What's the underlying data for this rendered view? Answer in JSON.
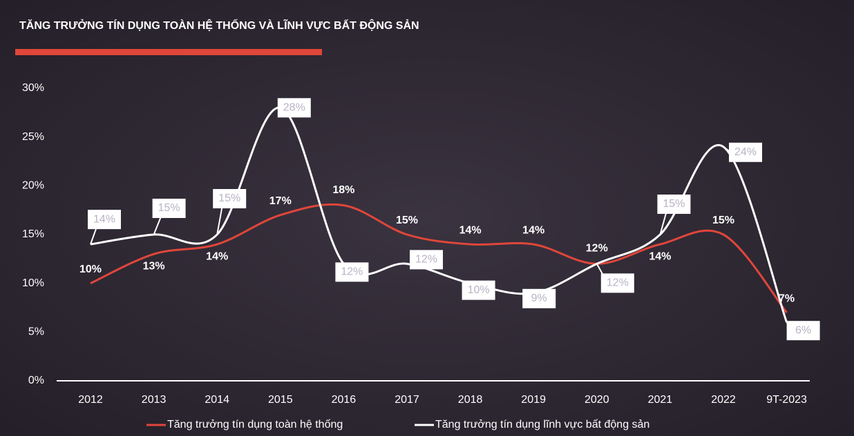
{
  "chart_data": {
    "type": "line",
    "title": "TĂNG TRƯỞNG TÍN DỤNG TOÀN HỆ THỐNG VÀ LĨNH VỰC BẤT ĐỘNG SẢN",
    "categories": [
      "2012",
      "2013",
      "2014",
      "2015",
      "2016",
      "2017",
      "2018",
      "2019",
      "2020",
      "2021",
      "2022",
      "9T-2023"
    ],
    "series": [
      {
        "name": "Tăng trưởng tín dụng toàn hệ thống",
        "color": "#e0463a",
        "values": [
          10,
          13,
          14,
          17,
          18,
          15,
          14,
          14,
          12,
          14,
          15,
          7
        ],
        "value_labels": [
          "10%",
          "13%",
          "14%",
          "17%",
          "18%",
          "15%",
          "14%",
          "14%",
          "12%",
          "14%",
          "15%",
          "7%"
        ]
      },
      {
        "name": "Tăng trưởng tín dụng lĩnh vực bất động sản",
        "color": "#ffffff",
        "values": [
          14,
          15,
          15,
          28,
          12,
          12,
          10,
          9,
          12,
          15,
          24,
          6
        ],
        "value_labels": [
          "14%",
          "15%",
          "15%",
          "28%",
          "12%",
          "12%",
          "10%",
          "9%",
          "12%",
          "15%",
          "24%",
          "6%"
        ]
      }
    ],
    "ylim": [
      0,
      30
    ],
    "yticks": [
      {
        "value": 0,
        "label": "0%"
      },
      {
        "value": 5,
        "label": "5%"
      },
      {
        "value": 10,
        "label": "10%"
      },
      {
        "value": 15,
        "label": "15%"
      },
      {
        "value": 20,
        "label": "20%"
      },
      {
        "value": 25,
        "label": "25%"
      },
      {
        "value": 30,
        "label": "30%"
      }
    ],
    "grid": false,
    "legend": "bottom"
  }
}
